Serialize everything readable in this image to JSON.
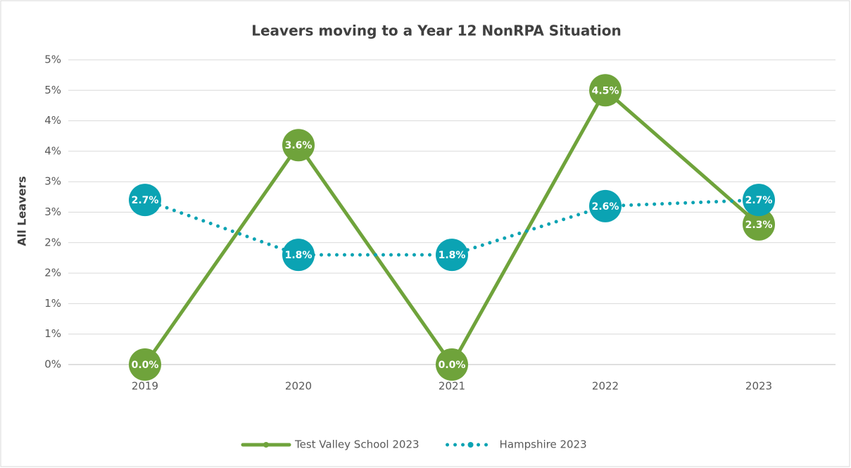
{
  "chart_data": {
    "type": "line",
    "title": "Leavers moving to a Year 12 NonRPA Situation",
    "y_label": "All Leavers",
    "categories": [
      "2019",
      "2020",
      "2021",
      "2022",
      "2023"
    ],
    "series": [
      {
        "name": "Test Valley School 2023",
        "color": "#6fa33b",
        "line_style": "solid",
        "values": [
          0,
          3.6,
          0,
          4.5,
          2.3
        ],
        "value_labels": [
          "0.0%",
          "3.6%",
          "0.0%",
          "4.5%",
          "2.3%"
        ]
      },
      {
        "name": "Hampshire 2023",
        "color": "#0ba3b3",
        "line_style": "dotted",
        "values": [
          2.7,
          1.8,
          1.8,
          2.6,
          2.7
        ],
        "value_labels": [
          "2.7%",
          "1.8%",
          "1.8%",
          "2.6%",
          "2.7%"
        ]
      }
    ],
    "ylim": [
      0,
      5
    ],
    "yticks": [
      {
        "value": 0,
        "label": "0%"
      },
      {
        "value": 0.5,
        "label": "1%"
      },
      {
        "value": 1,
        "label": "1%"
      },
      {
        "value": 1.5,
        "label": "2%"
      },
      {
        "value": 2,
        "label": "2%"
      },
      {
        "value": 2.5,
        "label": "3%"
      },
      {
        "value": 3,
        "label": "3%"
      },
      {
        "value": 3.5,
        "label": "4%"
      },
      {
        "value": 4,
        "label": "4%"
      },
      {
        "value": 4.5,
        "label": "5%"
      },
      {
        "value": 5,
        "label": "5%"
      }
    ],
    "grid": true,
    "legend": "bottom"
  }
}
